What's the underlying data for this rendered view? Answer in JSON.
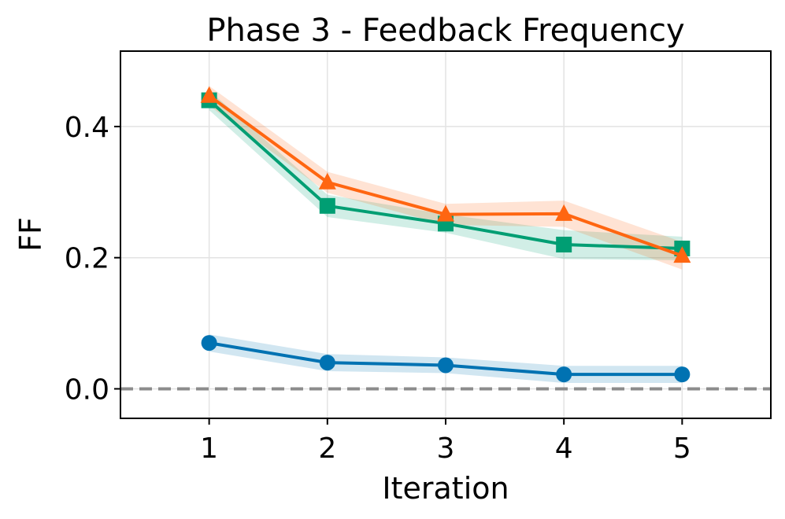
{
  "chart_data": {
    "type": "line",
    "title": "Phase 3 - Feedback Frequency",
    "xlabel": "Iteration",
    "ylabel": "FF",
    "x": [
      1,
      2,
      3,
      4,
      5
    ],
    "xlim": [
      0.25,
      5.75
    ],
    "ylim": [
      -0.045,
      0.515
    ],
    "xticks": [
      1,
      2,
      3,
      4,
      5
    ],
    "xtick_labels": [
      "1",
      "2",
      "3",
      "4",
      "5"
    ],
    "yticks": [
      0.0,
      0.2,
      0.4
    ],
    "ytick_labels": [
      "0.0",
      "0.2",
      "0.4"
    ],
    "grid": true,
    "reference_line": {
      "y": 0.0,
      "style": "dashed",
      "color": "#8c8c8c"
    },
    "series": [
      {
        "name": "series-blue",
        "color": "#0072b2",
        "marker": "circle",
        "values": [
          0.07,
          0.04,
          0.036,
          0.022,
          0.022
        ],
        "lower": [
          0.057,
          0.027,
          0.024,
          0.009,
          0.009
        ],
        "upper": [
          0.083,
          0.053,
          0.048,
          0.035,
          0.035
        ]
      },
      {
        "name": "series-green",
        "color": "#009e73",
        "marker": "square",
        "values": [
          0.44,
          0.279,
          0.252,
          0.22,
          0.214
        ],
        "lower": [
          0.425,
          0.262,
          0.238,
          0.198,
          0.196
        ],
        "upper": [
          0.455,
          0.296,
          0.266,
          0.242,
          0.232
        ]
      },
      {
        "name": "series-orange",
        "color": "#ff6611",
        "marker": "triangle",
        "values": [
          0.447,
          0.315,
          0.266,
          0.267,
          0.203
        ],
        "lower": [
          0.432,
          0.299,
          0.25,
          0.247,
          0.182
        ],
        "upper": [
          0.462,
          0.331,
          0.282,
          0.287,
          0.224
        ]
      }
    ]
  }
}
